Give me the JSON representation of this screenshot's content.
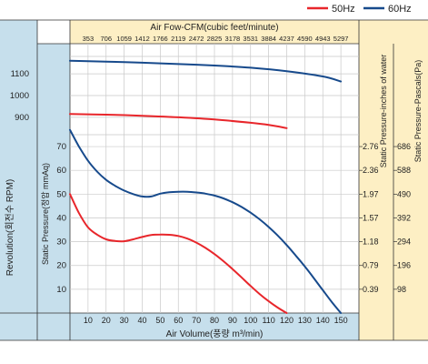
{
  "chart_data": {
    "type": "line",
    "legend": {
      "placement": "top-right",
      "entries": [
        "50Hz",
        "60Hz"
      ]
    },
    "top_axis": {
      "label": "Air Fow-CFM(cubic feet/minute)",
      "ticks": [
        "353",
        "706",
        "1059",
        "1412",
        "1766",
        "2119",
        "2472",
        "2825",
        "3178",
        "3531",
        "3884",
        "4237",
        "4590",
        "4943",
        "5297"
      ]
    },
    "x_axis": {
      "label": "Air Volume(풍량 m³/min)",
      "ticks": [
        10,
        20,
        30,
        40,
        50,
        60,
        70,
        80,
        90,
        100,
        110,
        120,
        130,
        140,
        150
      ],
      "range": [
        0,
        160
      ]
    },
    "left_rpm_axis": {
      "label": "Revolution(회전수 RPM)",
      "ticks": [
        900,
        1000,
        1100
      ],
      "range": [
        820,
        1180
      ]
    },
    "left_static_axis": {
      "label": "Static Pressure(정압 mmAq)",
      "ticks": [
        10,
        20,
        30,
        40,
        50,
        60,
        70
      ],
      "range": [
        0,
        75
      ]
    },
    "right_water_axis": {
      "label": "Static Pressure-inches of water",
      "ticks": [
        "0.39",
        "0.79",
        "1.18",
        "1.57",
        "1.97",
        "2.36",
        "2.76"
      ],
      "values": [
        10,
        20,
        30,
        40,
        50,
        60,
        70
      ]
    },
    "right_pascal_axis": {
      "label": "Static Pressure-Pascals(Pa)",
      "ticks": [
        "98",
        "196",
        "294",
        "392",
        "490",
        "588",
        "686"
      ],
      "values": [
        10,
        20,
        30,
        40,
        50,
        60,
        70
      ]
    },
    "grid": true,
    "colors": {
      "50Hz": "#e8262b",
      "60Hz": "#174a8c",
      "panel": "#c6dfec",
      "top_band": "#fdefc4",
      "right_band": "#fdefc4"
    },
    "series": [
      {
        "name": "50Hz",
        "panel": "rpm",
        "x": [
          0,
          20,
          40,
          60,
          80,
          100,
          110,
          120
        ],
        "y": [
          915,
          912,
          907,
          900,
          890,
          875,
          865,
          850
        ]
      },
      {
        "name": "60Hz",
        "panel": "rpm",
        "x": [
          0,
          20,
          40,
          60,
          80,
          100,
          120,
          140,
          150
        ],
        "y": [
          1160,
          1156,
          1151,
          1145,
          1138,
          1128,
          1112,
          1088,
          1065
        ]
      },
      {
        "name": "50Hz",
        "panel": "static",
        "x": [
          0,
          5,
          10,
          15,
          20,
          25,
          30,
          35,
          40,
          45,
          50,
          55,
          60,
          65,
          70,
          75,
          80,
          85,
          90,
          95,
          100,
          105,
          110,
          115,
          120
        ],
        "y": [
          50,
          42,
          36,
          33,
          31,
          30.3,
          30.2,
          31,
          32,
          32.8,
          33,
          32.9,
          32.4,
          31.3,
          29.6,
          27.4,
          24.8,
          21.8,
          18.5,
          15,
          11.4,
          8,
          5,
          2.3,
          0
        ]
      },
      {
        "name": "60Hz",
        "panel": "static",
        "x": [
          0,
          5,
          10,
          15,
          20,
          25,
          30,
          35,
          40,
          45,
          50,
          55,
          60,
          65,
          70,
          75,
          80,
          85,
          90,
          95,
          100,
          105,
          110,
          115,
          120,
          125,
          130,
          135,
          140,
          145,
          150
        ],
        "y": [
          77,
          70,
          64,
          59.5,
          56,
          53.5,
          51.5,
          50,
          49,
          49,
          50.2,
          50.8,
          51,
          51,
          50.7,
          50.2,
          49.4,
          48.2,
          46.6,
          44.6,
          42.2,
          39.4,
          36.2,
          32.6,
          28.6,
          24.2,
          19.6,
          14.7,
          9.6,
          4.6,
          0
        ]
      }
    ]
  }
}
